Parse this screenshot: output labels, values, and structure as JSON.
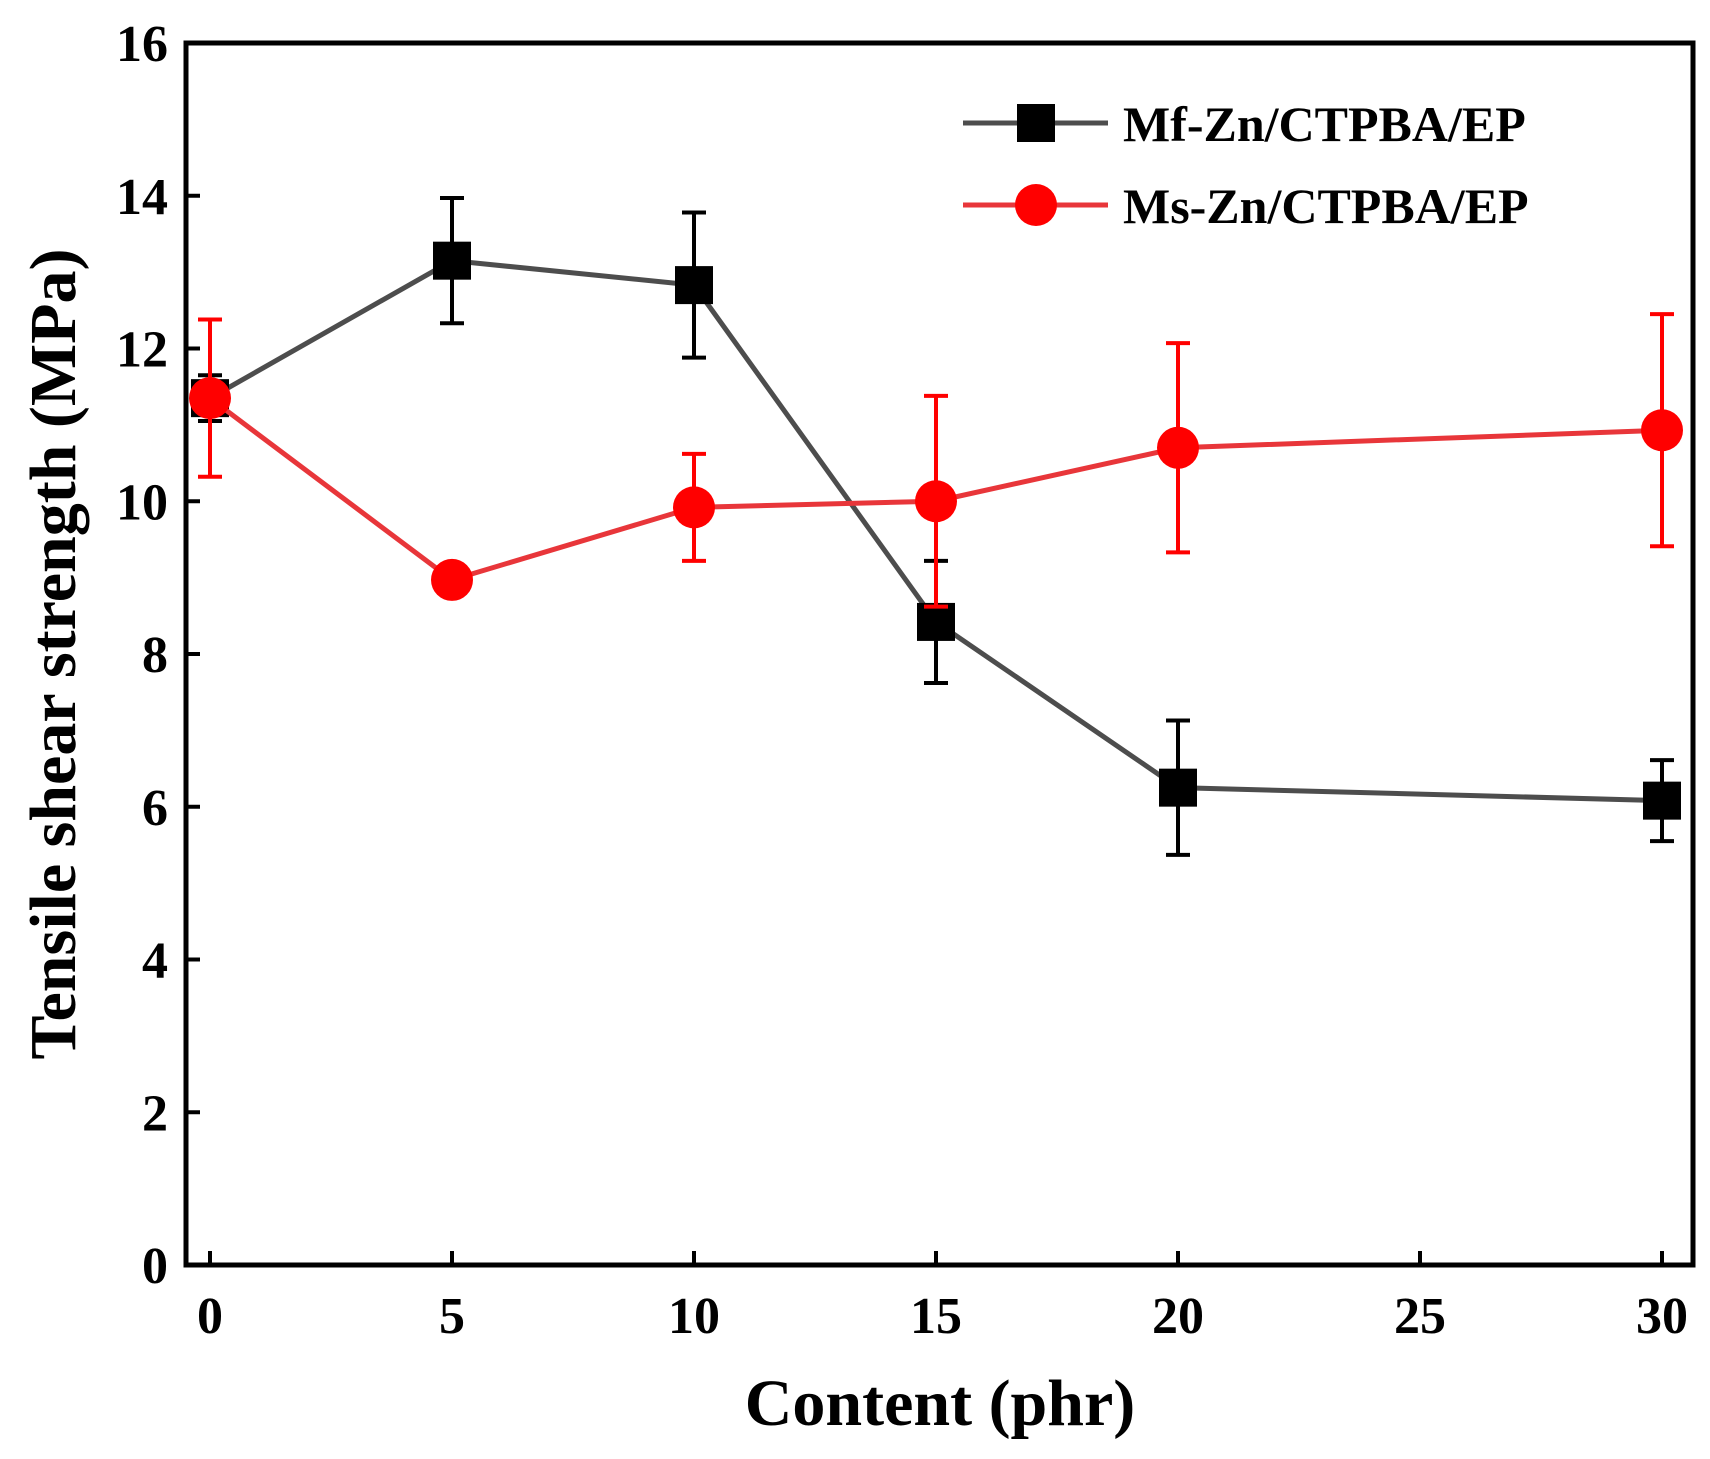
{
  "chart_data": {
    "type": "line",
    "xlabel": "Content (phr)",
    "ylabel": "Tensile shear strength (MPa)",
    "x_ticks": [
      "0",
      "5",
      "10",
      "15",
      "20",
      "25",
      "30"
    ],
    "y_ticks": [
      "0",
      "2",
      "4",
      "6",
      "8",
      "10",
      "12",
      "14",
      "16"
    ],
    "ylim": [
      0,
      16
    ],
    "x_categories": [
      0,
      5,
      10,
      15,
      20,
      30
    ],
    "legend_position": "top-right",
    "series": [
      {
        "name": "Mf-Zn/CTPBA/EP",
        "color": "#4d4d4d",
        "marker_color": "#000000",
        "marker": "square",
        "values": [
          11.35,
          13.15,
          12.83,
          8.42,
          6.25,
          6.08
        ],
        "errors": [
          0.3,
          0.82,
          0.95,
          0.8,
          0.88,
          0.53
        ]
      },
      {
        "name": "Ms-Zn/CTPBA/EP",
        "color": "#e8363a",
        "marker_color": "#ff0000",
        "marker": "circle",
        "values": [
          11.35,
          8.97,
          9.92,
          10.0,
          10.7,
          10.93
        ],
        "errors": [
          1.03,
          0.12,
          0.7,
          1.38,
          1.37,
          1.52
        ]
      }
    ]
  }
}
